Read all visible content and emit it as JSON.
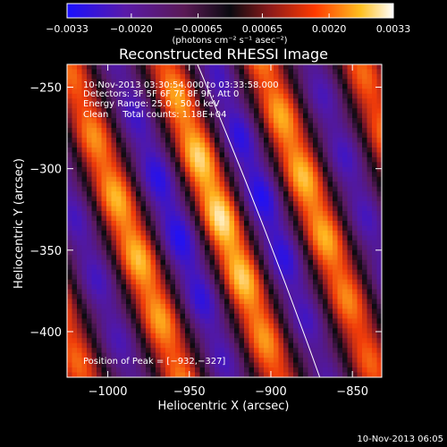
{
  "chart_data": {
    "type": "heatmap",
    "title": "Reconstructed RHESSI Image",
    "xlabel": "Heliocentric X (arcsec)",
    "ylabel": "Heliocentric Y (arcsec)",
    "xlim": [
      -1025,
      -832
    ],
    "ylim": [
      -428,
      -236
    ],
    "x_ticks": [
      {
        "value": -1000,
        "label": "−1000"
      },
      {
        "value": -950,
        "label": "−950"
      },
      {
        "value": -900,
        "label": "−900"
      },
      {
        "value": -850,
        "label": "−850"
      }
    ],
    "y_ticks": [
      {
        "value": -250,
        "label": "−250"
      },
      {
        "value": -300,
        "label": "−300"
      },
      {
        "value": -350,
        "label": "−350"
      },
      {
        "value": -400,
        "label": "−400"
      }
    ],
    "colorbar": {
      "min": -0.0033,
      "max": 0.0033,
      "ticks": [
        {
          "value": -0.0033,
          "label": "−0.0033"
        },
        {
          "value": -0.002,
          "label": "−0.0020"
        },
        {
          "value": -0.00065,
          "label": "−0.00065"
        },
        {
          "value": 0.00065,
          "label": "0.00065"
        },
        {
          "value": 0.002,
          "label": "0.0020"
        },
        {
          "value": 0.0033,
          "label": "0.0033"
        }
      ],
      "unit_label": "(photons cm⁻² s⁻¹ asec⁻²)"
    },
    "peak": {
      "x": -932,
      "y": -327
    },
    "limb_curve": [
      [
        -945,
        -236
      ],
      [
        -905,
        -330
      ],
      [
        -870,
        -428
      ]
    ],
    "annotations": [
      "10-Nov-2013 03:30:54.000 to 03:33:58.000",
      "Detectors: 3F 5F 6F 7F 8F 9F, Att 0",
      "Energy Range: 25.0 - 50.0 keV",
      "Clean     Total counts: 1.18E+04"
    ],
    "peak_label": "Position of Peak = [−932,−327]",
    "timestamp": "10-Nov-2013 06:05"
  }
}
